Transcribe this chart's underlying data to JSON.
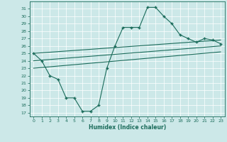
{
  "title": "",
  "xlabel": "Humidex (Indice chaleur)",
  "ylabel": "",
  "background_color": "#cce8e8",
  "line_color": "#1a6b5a",
  "ylim": [
    16.5,
    32.0
  ],
  "xlim": [
    -0.5,
    23.5
  ],
  "yticks": [
    17,
    18,
    19,
    20,
    21,
    22,
    23,
    24,
    25,
    26,
    27,
    28,
    29,
    30,
    31
  ],
  "xticks": [
    0,
    1,
    2,
    3,
    4,
    5,
    6,
    7,
    8,
    9,
    10,
    11,
    12,
    13,
    14,
    15,
    16,
    17,
    18,
    19,
    20,
    21,
    22,
    23
  ],
  "main_x": [
    0,
    1,
    2,
    3,
    4,
    5,
    6,
    7,
    8,
    9,
    10,
    11,
    12,
    13,
    14,
    15,
    16,
    17,
    18,
    19,
    20,
    21,
    22,
    23
  ],
  "main_y": [
    25.0,
    24.0,
    22.0,
    21.5,
    19.0,
    19.0,
    17.2,
    17.2,
    18.0,
    23.0,
    26.0,
    28.5,
    28.5,
    28.5,
    31.2,
    31.2,
    30.0,
    29.0,
    27.5,
    27.0,
    26.5,
    27.0,
    26.8,
    26.3
  ],
  "line1_x": [
    0,
    23
  ],
  "line1_y": [
    25.0,
    26.8
  ],
  "line2_x": [
    0,
    23
  ],
  "line2_y": [
    24.0,
    26.0
  ],
  "line3_x": [
    0,
    23
  ],
  "line3_y": [
    23.0,
    25.2
  ]
}
